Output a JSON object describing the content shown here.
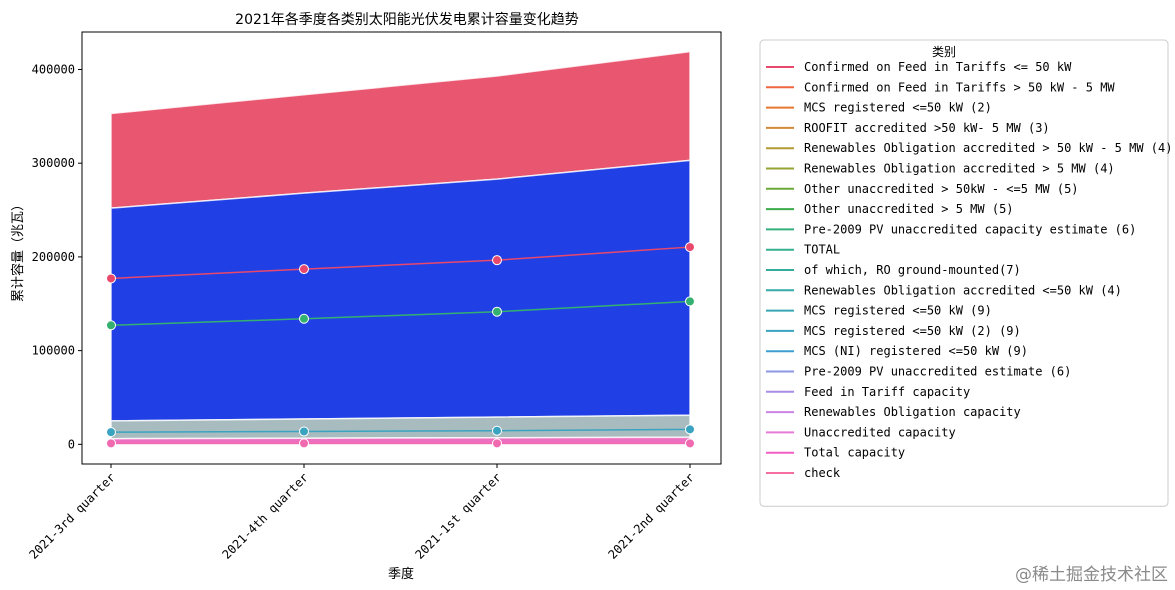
{
  "chart_data": {
    "type": "area",
    "title": "2021年各季度各类别太阳能光伏发电累计容量变化趋势",
    "xlabel": "季度",
    "ylabel": "累计容量（兆瓦）",
    "categories": [
      "2021-3rd quarter",
      "2021-4th quarter",
      "2021-1st quarter",
      "2021-2nd quarter"
    ],
    "ylim": [
      -21000,
      440000
    ],
    "yticks": [
      0,
      100000,
      200000,
      300000,
      400000
    ],
    "legend_title": "类别",
    "legend_position": "outside-right",
    "series": [
      {
        "name": "Confirmed on Feed in Tariffs  <= 50 kW",
        "color": "#e8486b",
        "values": [
          2700,
          2750,
          2800,
          2850
        ]
      },
      {
        "name": "Confirmed on Feed in Tariffs  > 50 kW - 5 MW",
        "color": "#ef6540",
        "values": [
          2100,
          2120,
          2150,
          2180
        ]
      },
      {
        "name": "MCS registered <=50 kW (2)",
        "color": "#e6782f",
        "values": [
          600,
          620,
          640,
          660
        ]
      },
      {
        "name": "ROOFIT accredited >50 kW- 5 MW (3)",
        "color": "#d18a36",
        "values": [
          250,
          260,
          270,
          280
        ]
      },
      {
        "name": "Renewables Obligation accredited > 50 kW - 5 MW (4)",
        "color": "#b39b33",
        "values": [
          900,
          910,
          920,
          930
        ]
      },
      {
        "name": "Renewables Obligation accredited > 5 MW (4)",
        "color": "#95a331",
        "values": [
          5500,
          5600,
          5700,
          5800
        ]
      },
      {
        "name": "Other unaccredited > 50kW - <=5 MW (5)",
        "color": "#6aa83a",
        "values": [
          800,
          850,
          900,
          950
        ]
      },
      {
        "name": "Other unaccredited > 5 MW (5)",
        "color": "#3aad4a",
        "values": [
          1200,
          1300,
          1400,
          1500
        ]
      },
      {
        "name": "Pre-2009 PV unaccredited capacity estimate (6)",
        "color": "#33b07d",
        "values": [
          30,
          30,
          30,
          30
        ]
      },
      {
        "name": "TOTAL",
        "color": "#34b090",
        "values": [
          13400,
          13700,
          14100,
          14500
        ]
      },
      {
        "name": "of which, RO ground-mounted(7)",
        "color": "#35ad9e",
        "values": [
          6000,
          6050,
          6100,
          6150
        ]
      },
      {
        "name": "Renewables Obligation accredited <=50 kW (4)",
        "color": "#36aaa8",
        "values": [
          1,
          1,
          1,
          1
        ]
      },
      {
        "name": "MCS registered <=50 kW (9)",
        "color": "#38a7b3",
        "values": [
          200,
          210,
          220,
          230
        ]
      },
      {
        "name": "MCS registered <=50 kW (2) (9)",
        "color": "#3aa3c0",
        "values": [
          30,
          32,
          34,
          36
        ]
      },
      {
        "name": "MCS (NI) registered <=50 kW (9)",
        "color": "#3d9fd0",
        "values": [
          12,
          13,
          14,
          15
        ]
      },
      {
        "name": "Pre-2009 PV unaccredited estimate (6)",
        "color": "#8e97e6",
        "values": [
          30,
          30,
          30,
          30
        ]
      },
      {
        "name": "Feed in Tariff capacity",
        "color": "#a98ce8",
        "values": [
          4800,
          4850,
          4900,
          4950
        ]
      },
      {
        "name": "Renewables Obligation capacity",
        "color": "#cb84e4",
        "values": [
          6400,
          6500,
          6600,
          6700
        ]
      },
      {
        "name": "Unaccredited capacity",
        "color": "#e77ad6",
        "values": [
          2000,
          2150,
          2300,
          2450
        ]
      },
      {
        "name": "Total capacity",
        "color": "#f15fc3",
        "values": [
          13400,
          13700,
          14100,
          14500
        ]
      },
      {
        "name": "check",
        "color": "#f56fa3",
        "values": [
          0,
          0,
          0,
          0
        ]
      }
    ],
    "visible_bands": [
      {
        "label": "Total capacity",
        "fill": "#e8566f",
        "lower": [
          252000,
          268000,
          283000,
          303000
        ],
        "upper": [
          353000,
          373000,
          393000,
          419000
        ]
      },
      {
        "label": "Feed in Tariff capacity",
        "fill": "#2040e6",
        "lower": [
          25000,
          27000,
          29000,
          31000
        ],
        "upper": [
          252000,
          268000,
          283000,
          303000
        ]
      },
      {
        "label": "TOTAL",
        "fill": "#a8bcc0",
        "lower": [
          6000,
          6500,
          7000,
          7500
        ],
        "upper": [
          25000,
          27000,
          29000,
          31000
        ]
      },
      {
        "label": "check",
        "fill": "#ee6fc0",
        "lower": [
          0,
          0,
          0,
          0
        ],
        "upper": [
          6000,
          6500,
          7000,
          7500
        ]
      }
    ],
    "marker_lines": [
      {
        "label": "Total capacity",
        "color": "#e8486b",
        "values": [
          177000,
          187000,
          196500,
          210500
        ]
      },
      {
        "label": "TOTAL",
        "color": "#34b070",
        "values": [
          127000,
          134000,
          141500,
          152500
        ]
      },
      {
        "label": "MCS registered <=50 kW (9)",
        "color": "#3aa3c0",
        "values": [
          13000,
          13700,
          14500,
          16000
        ]
      },
      {
        "label": "check",
        "color": "#f06ab0",
        "values": [
          1000,
          1000,
          1000,
          1000
        ]
      }
    ]
  },
  "watermark": "@稀土掘金技术社区"
}
